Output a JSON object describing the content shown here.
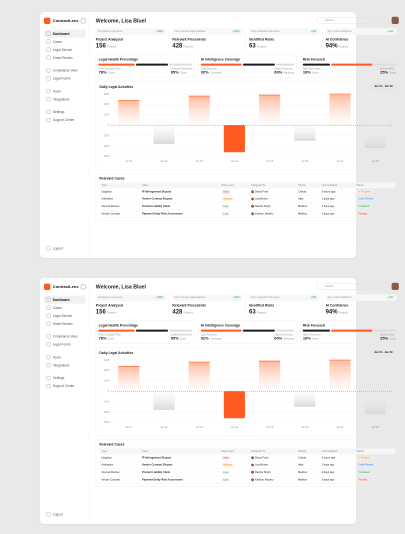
{
  "sidebar": {
    "brand": "ContractLens",
    "menu": [
      "Dashboard",
      "Cases",
      "Legal Service",
      "Smart Review",
      "Compliance View",
      "Legal Forms",
      "Team",
      "Integrations",
      "Settings",
      "Support Center"
    ],
    "footer": "Logout"
  },
  "header": {
    "title": "Welcome, Lisa Bluel",
    "search": "Search"
  },
  "stats": [
    {
      "note": "Compared to last week",
      "change": "+18%",
      "label": "Project Analyzed",
      "value": "156",
      "unit": "Projects"
    },
    {
      "note": "From relevant legal database",
      "change": "+14%",
      "label": "Relevant Precedents",
      "value": "428",
      "unit": "Projects"
    },
    {
      "note": "From uploaded documents",
      "change": "+9%",
      "label": "Identified Risks",
      "value": "63",
      "unit": "Projects"
    },
    {
      "note": "Avg. model confidence",
      "change": "+2%",
      "label": "AI Confidence",
      "value": "94%",
      "unit": "Projects"
    }
  ],
  "health": [
    {
      "title": "Legal Health Percentage",
      "items": [
        {
          "label": "Fully Compliant Files",
          "value": "78%",
          "unit": "Score"
        },
        {
          "label": "Contract Risk Areas",
          "value": "65%",
          "unit": "Score"
        }
      ]
    },
    {
      "title": "AI Intelligence Coverage",
      "items": [
        {
          "label": "Case Matching",
          "value": "92%",
          "unit": "Coverage"
        },
        {
          "label": "Clause Detection",
          "value": "69%",
          "unit": "Matching"
        }
      ]
    },
    {
      "title": "Risk Focused",
      "items": [
        {
          "label": "High Risk Issues",
          "value": "18%",
          "unit": "Score"
        },
        {
          "label": "Medium Risk",
          "value": "25%",
          "unit": "Score"
        }
      ]
    }
  ],
  "activity": {
    "title": "Daily Legal Activities",
    "range": "Jan 01 - Jan 09",
    "categories": [
      "Jan 01",
      "Jan 02",
      "Jan 03",
      "Jan 04",
      "Jan 05",
      "Jan 06",
      "Jan 07",
      "Jan 08"
    ],
    "values": [
      2400,
      -1800,
      2800,
      -2600,
      2900,
      -1500,
      3000,
      -2200
    ],
    "ylim": [
      -3000,
      3000
    ],
    "yticks": [
      3000,
      2000,
      1000,
      0,
      -1000,
      -2000,
      -3000
    ]
  },
  "cases": {
    "title": "Relevant Cases",
    "columns": [
      "Type",
      "Case",
      "Risk Level",
      "Assigned To",
      "Priority",
      "Last Updated",
      "Status"
    ],
    "rows": [
      [
        "Litigation",
        "IP Infringement Dispute",
        "High",
        "David Frost",
        "Critical",
        "5 hours ago",
        "In Progress"
      ],
      [
        "Arbitration",
        "Vendor Contract Dispute",
        "Medium",
        "Lisa Brown",
        "High",
        "1 days ago",
        "Under Review"
      ],
      [
        "Internal Review",
        "Product Liability Claim",
        "Low",
        "Rachel Singh",
        "Medium",
        "2 days ago",
        "Completed"
      ],
      [
        "Vendor Contract",
        "Payment Delay Risk Assessment",
        "Low",
        "Kathryn Murphy",
        "Medium",
        "3 days ago",
        "Pending"
      ]
    ]
  }
}
